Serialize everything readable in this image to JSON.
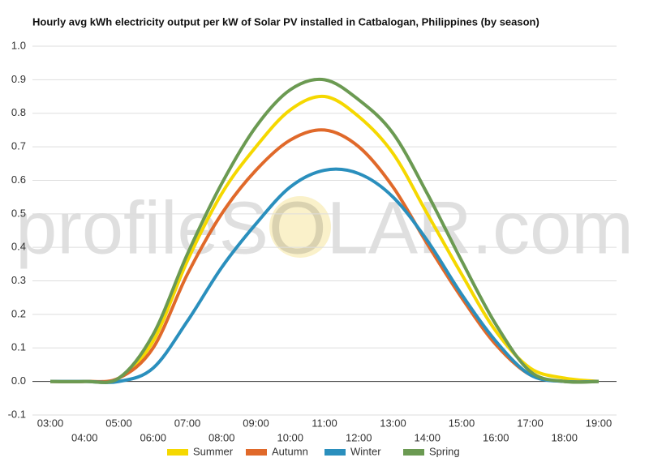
{
  "chart_data": {
    "type": "line",
    "title": "Hourly avg kWh electricity output per kW of Solar PV installed in Catbalogan, Philippines (by season)",
    "watermark": "profileSOLAR.com",
    "categories": [
      "03:00",
      "04:00",
      "05:00",
      "06:00",
      "07:00",
      "08:00",
      "09:00",
      "10:00",
      "11:00",
      "12:00",
      "13:00",
      "14:00",
      "15:00",
      "16:00",
      "17:00",
      "18:00",
      "19:00"
    ],
    "series": [
      {
        "name": "Summer",
        "color": "#f5d800",
        "values": [
          0,
          0,
          0.01,
          0.12,
          0.36,
          0.56,
          0.7,
          0.81,
          0.85,
          0.79,
          0.68,
          0.5,
          0.32,
          0.15,
          0.04,
          0.01,
          0
        ]
      },
      {
        "name": "Autumn",
        "color": "#e0692a",
        "values": [
          0,
          0,
          0.01,
          0.1,
          0.32,
          0.5,
          0.63,
          0.72,
          0.75,
          0.7,
          0.58,
          0.41,
          0.25,
          0.11,
          0.02,
          0,
          0
        ]
      },
      {
        "name": "Winter",
        "color": "#2a8fbd",
        "values": [
          0,
          0,
          0,
          0.04,
          0.18,
          0.34,
          0.47,
          0.58,
          0.63,
          0.62,
          0.55,
          0.42,
          0.26,
          0.12,
          0.02,
          0,
          0
        ]
      },
      {
        "name": "Spring",
        "color": "#6b9a52",
        "values": [
          0,
          0,
          0.01,
          0.14,
          0.38,
          0.59,
          0.76,
          0.87,
          0.9,
          0.84,
          0.74,
          0.56,
          0.36,
          0.17,
          0.03,
          0,
          0
        ]
      }
    ],
    "ylim": [
      -0.1,
      1.0
    ],
    "yticks": [
      -0.1,
      {
        "value": 0,
        "label": "0.0"
      },
      0.1,
      0.2,
      0.3,
      0.4,
      0.5,
      0.6,
      0.7,
      0.8,
      0.9,
      {
        "value": 1,
        "label": "1.0"
      }
    ],
    "grid": true,
    "legend": "bottom"
  }
}
